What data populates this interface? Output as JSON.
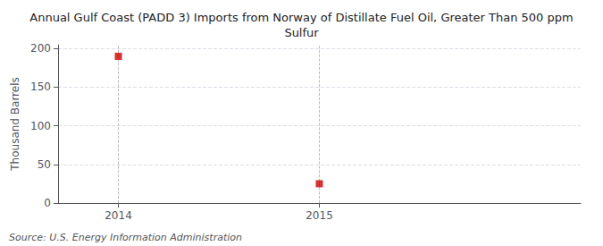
{
  "chart_data": {
    "type": "scatter",
    "title": "Annual Gulf Coast (PADD 3) Imports from Norway of Distillate Fuel Oil, Greater Than 500 ppm\nSulfur",
    "ylabel": "Thousand Barrels",
    "annotation": "Source: U.S. Energy Information Administration",
    "x": [
      2014,
      2015
    ],
    "values": [
      190,
      25
    ],
    "color": "#cc0000",
    "marker": "square",
    "xlim": [
      2013.7,
      2016.3
    ],
    "xticks": [
      2014,
      2015
    ],
    "ylim": [
      0,
      205
    ],
    "yticks": [
      0,
      50,
      100,
      150,
      200
    ],
    "grid": true
  }
}
